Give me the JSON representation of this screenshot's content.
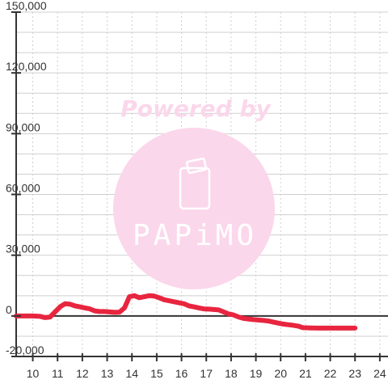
{
  "chart_data": {
    "type": "line",
    "title": "",
    "xlabel": "",
    "ylabel": "",
    "xlim": [
      9.33,
      24.33
    ],
    "ylim": [
      -20000,
      150000
    ],
    "x_ticks": [
      10,
      11,
      12,
      13,
      14,
      15,
      16,
      17,
      18,
      19,
      20,
      21,
      22,
      23,
      24
    ],
    "x_tick_labels": [
      "10",
      "11",
      "12",
      "13",
      "14",
      "15",
      "16",
      "17",
      "18",
      "19",
      "20",
      "21",
      "22",
      "23",
      "24"
    ],
    "y_ticks": [
      -20000,
      0,
      30000,
      60000,
      90000,
      120000,
      150000
    ],
    "y_tick_labels": [
      "-20,000",
      "0",
      "30,000",
      "60,000",
      "90,000",
      "120,000",
      "150,000"
    ],
    "grid": true,
    "legend": "none",
    "series": [
      {
        "color": "#e8253f",
        "x": [
          9.33,
          9.7,
          10.0,
          10.3,
          10.5,
          10.7,
          10.9,
          11.1,
          11.3,
          11.5,
          11.7,
          11.9,
          12.1,
          12.3,
          12.5,
          12.7,
          12.9,
          13.1,
          13.3,
          13.5,
          13.7,
          13.9,
          14.1,
          14.3,
          14.5,
          14.7,
          14.9,
          15.1,
          15.3,
          15.5,
          15.7,
          15.9,
          16.1,
          16.3,
          16.5,
          16.7,
          16.9,
          17.1,
          17.3,
          17.5,
          17.7,
          17.9,
          18.1,
          18.3,
          18.5,
          18.7,
          18.9,
          19.1,
          19.3,
          19.5,
          19.7,
          19.9,
          20.1,
          20.3,
          20.5,
          20.7,
          20.9,
          21.5,
          22.0,
          22.5,
          23.0
        ],
        "y": [
          0,
          0,
          0,
          -200,
          -800,
          -500,
          2000,
          4500,
          6000,
          5800,
          5000,
          4500,
          4000,
          3500,
          2500,
          2200,
          2200,
          2000,
          1800,
          1900,
          4000,
          9500,
          10000,
          9000,
          9500,
          10000,
          9800,
          9000,
          8000,
          7500,
          7000,
          6500,
          6000,
          5000,
          4500,
          4000,
          3500,
          3400,
          3200,
          3000,
          2000,
          1000,
          500,
          -500,
          -1200,
          -1500,
          -1800,
          -2000,
          -2200,
          -2500,
          -3000,
          -3500,
          -4000,
          -4300,
          -4600,
          -5000,
          -5800,
          -6000,
          -6000,
          -6000,
          -6000
        ]
      }
    ]
  },
  "watermark": {
    "text": "Powered by",
    "logo": "PAPiMO",
    "circle_color": "#fbd7eb",
    "text_color": "#fbd7eb"
  },
  "colors": {
    "grid": "#cfcfcf",
    "axis": "#333333",
    "line": "#e8253f",
    "background": "#ffffff"
  }
}
